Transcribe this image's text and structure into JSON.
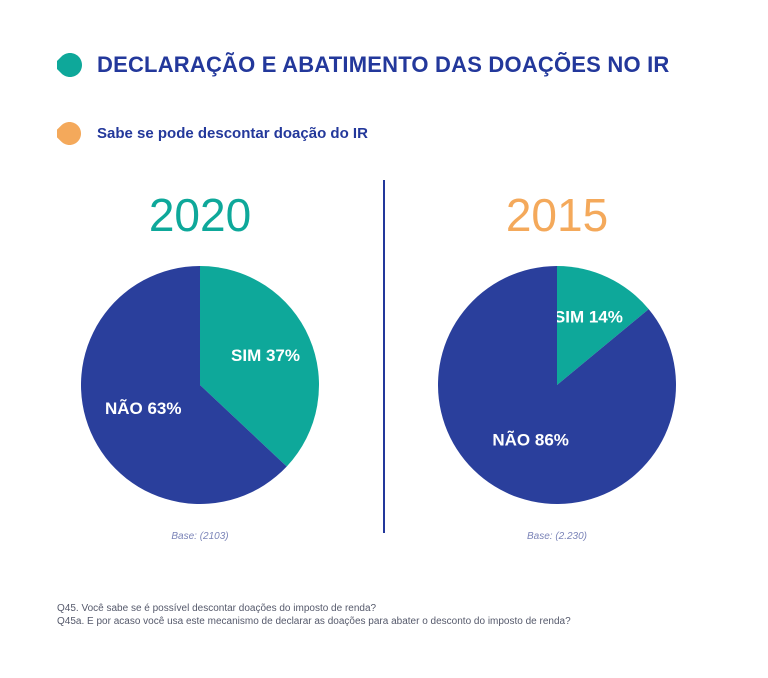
{
  "title": "DECLARAÇÃO E ABATIMENTO DAS DOAÇÕES NO IR",
  "subtitle": "Sabe se pode descontar doação do IR",
  "colors": {
    "navy": "#2a3f9c",
    "teal": "#0ea89a",
    "orange": "#f4a95b",
    "title": "#23389b"
  },
  "icons": {
    "title_marker": "teal-drop-icon",
    "subtitle_marker": "orange-drop-icon"
  },
  "chart_data": [
    {
      "type": "pie",
      "title": "2020",
      "slices": [
        {
          "label": "SIM 37%",
          "value": 37,
          "color": "#0ea89a"
        },
        {
          "label": "NÃO 63%",
          "value": 63,
          "color": "#2a3f9c"
        }
      ],
      "base": "Base: (2103)"
    },
    {
      "type": "pie",
      "title": "2015",
      "slices": [
        {
          "label": "SIM 14%",
          "value": 14,
          "color": "#0ea89a"
        },
        {
          "label": "NÃO 86%",
          "value": 86,
          "color": "#2a3f9c"
        }
      ],
      "base": "Base: (2.230)"
    }
  ],
  "footnotes": [
    "Q45. Você sabe se é possível descontar doações do imposto de renda?",
    "Q45a. E por acaso você usa este mecanismo de declarar as doações para abater o desconto do imposto de renda?"
  ]
}
